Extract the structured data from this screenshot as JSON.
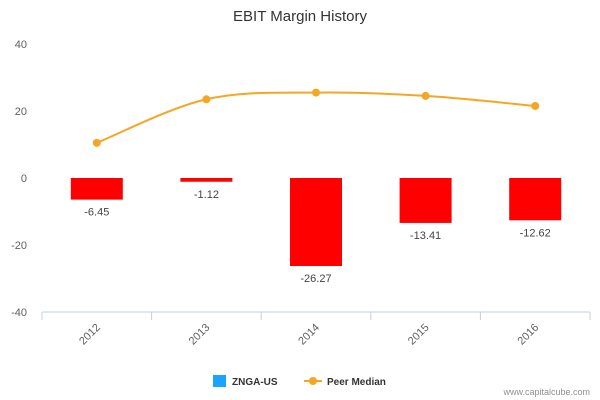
{
  "chart_data": {
    "type": "bar",
    "title": "EBIT Margin History",
    "categories": [
      "2012",
      "2013",
      "2014",
      "2015",
      "2016"
    ],
    "ylim": [
      -40,
      40
    ],
    "yticks": [
      40,
      20,
      0,
      -20,
      -40
    ],
    "grid": false,
    "legend_position": "bottom-center",
    "series": [
      {
        "name": "ZNGA-US",
        "type": "bar",
        "values": [
          -6.45,
          -1.12,
          -26.27,
          -13.41,
          -12.62
        ],
        "data_labels": [
          "-6.45",
          "-1.12",
          "-26.27",
          "-13.41",
          "-12.62"
        ],
        "color": "#ff0000",
        "legend_color": "#1aa3ff"
      },
      {
        "name": "Peer Median",
        "type": "line",
        "values": [
          10.5,
          23.5,
          25.5,
          24.5,
          21.5
        ],
        "color": "#f5a623"
      }
    ]
  },
  "credit": "www.capitalcube.com"
}
